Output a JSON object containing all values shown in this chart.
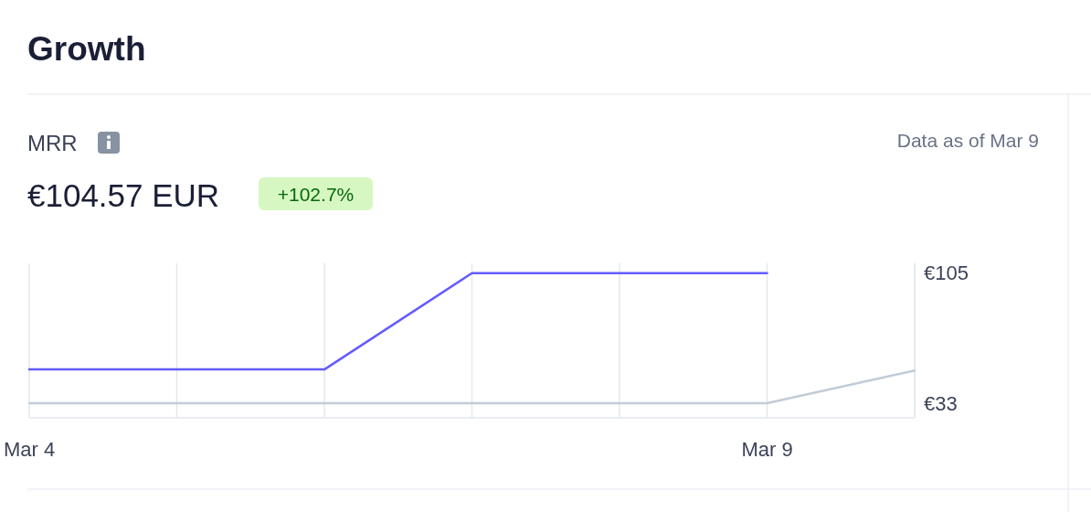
{
  "chart_data": {
    "type": "line",
    "title": "Growth",
    "subtitle": "MRR",
    "annotations": [
      "€104.57 EUR",
      "+102.7%",
      "Data as of Mar 9"
    ],
    "x": [
      "--03-04",
      "--03-05",
      "--03-06",
      "--03-07",
      "--03-08",
      "--03-09",
      "--03-10"
    ],
    "series": [
      {
        "color": "#635bff",
        "values": [
          51.6,
          51.6,
          51.6,
          104.57,
          104.57,
          104.57,
          null
        ]
      },
      {
        "color": "#c1ccd6",
        "values": [
          33,
          33,
          33,
          33,
          33,
          33,
          51
        ]
      }
    ],
    "xlim": [
      "--03-04",
      "--03-10"
    ],
    "xticks": [
      {
        "value": "--03-04",
        "label": "Mar 4"
      },
      {
        "value": "--03-05",
        "label": null
      },
      {
        "value": "--03-06",
        "label": null
      },
      {
        "value": "--03-07",
        "label": null
      },
      {
        "value": "--03-08",
        "label": null
      },
      {
        "value": "--03-09",
        "label": "Mar 9"
      },
      {
        "value": "--03-10",
        "label": null
      }
    ],
    "ylim": [
      25,
      110
    ],
    "yticks": [
      {
        "value": 105,
        "label": "€105"
      },
      {
        "value": 33,
        "label": "€33"
      }
    ],
    "grid": "x"
  }
}
